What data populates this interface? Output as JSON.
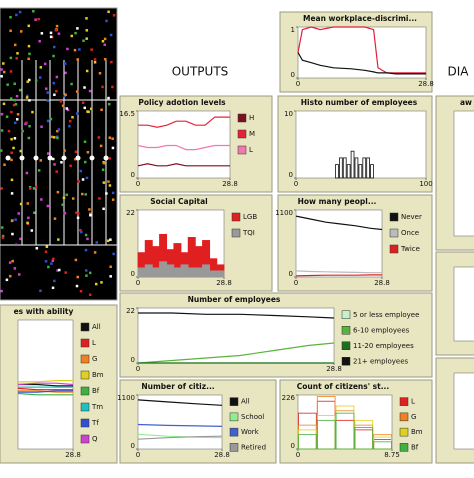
{
  "header": {
    "outputs": "OUTPUTS",
    "dia": "DIA"
  },
  "panels": [
    {
      "title": "Mean workplace-discrimi...",
      "type": "line",
      "xlim": [
        0,
        28.8
      ],
      "xticks": [
        0,
        28.8
      ],
      "ylim": [
        0,
        1
      ],
      "yticks": [
        0,
        1
      ],
      "x": [
        0,
        1,
        3,
        5,
        8,
        12,
        15,
        17,
        18,
        20,
        22,
        25,
        28.8
      ],
      "series": [
        {
          "color": "#e0203a",
          "values": [
            0.5,
            0.95,
            1,
            0.95,
            1,
            1,
            1,
            0.95,
            0.2,
            0.1,
            0.1,
            0.1,
            0.1
          ]
        },
        {
          "color": "#111111",
          "values": [
            0.5,
            0.35,
            0.3,
            0.25,
            0.2,
            0.18,
            0.15,
            0.12,
            0.1,
            0.1,
            0.08,
            0.08,
            0.08
          ]
        }
      ]
    },
    {
      "title": "Policy adotion levels",
      "type": "line",
      "xlim": [
        0,
        28.8
      ],
      "xticks": [
        0,
        28.8
      ],
      "ylim": [
        0,
        16.5
      ],
      "yticks": [
        0,
        16.5
      ],
      "x": [
        0,
        3,
        6,
        9,
        12,
        15,
        18,
        21,
        24,
        28.8
      ],
      "series": [
        {
          "name": "H",
          "color": "#7b1020",
          "values": [
            3,
            3.5,
            3,
            3,
            3.5,
            3,
            3,
            3,
            3,
            3
          ]
        },
        {
          "name": "M",
          "color": "#e8203a",
          "values": [
            13,
            13,
            12.5,
            13,
            14,
            14,
            13,
            13,
            15,
            15
          ]
        },
        {
          "name": "L",
          "color": "#f07ab0",
          "values": [
            8,
            7.5,
            7.5,
            8,
            8,
            7,
            7,
            7.5,
            8,
            8
          ]
        }
      ]
    },
    {
      "title": "Histo number of employees",
      "type": "histogram",
      "xlim": [
        0,
        100
      ],
      "xticks": [
        0,
        100
      ],
      "ylim": [
        0,
        10
      ],
      "yticks": [
        0,
        10
      ],
      "bins": [
        30,
        33,
        36,
        39,
        42,
        45,
        48,
        51,
        54,
        57,
        60
      ],
      "series": [
        {
          "color": "#111111",
          "values": [
            2,
            3,
            3,
            2,
            4,
            3,
            2,
            3,
            3,
            2
          ]
        }
      ]
    },
    {
      "title": "Social Capital",
      "type": "histogram",
      "xlim": [
        0,
        28.8
      ],
      "xticks": [
        0,
        28.8
      ],
      "ylim": [
        0,
        22
      ],
      "yticks": [
        0,
        22
      ],
      "bins": [
        0,
        2.4,
        4.8,
        7.2,
        9.6,
        12,
        14.4,
        16.8,
        19.2,
        21.6,
        24,
        26.4,
        28.8
      ],
      "series": [
        {
          "name": "LGB",
          "color": "#e02020",
          "values": [
            8,
            12,
            10,
            14,
            9,
            11,
            8,
            13,
            10,
            12,
            6,
            4
          ]
        },
        {
          "name": "TQI",
          "color": "#999999",
          "values": [
            3,
            4,
            3,
            5,
            4,
            3,
            4,
            3,
            3,
            4,
            2,
            2
          ]
        }
      ]
    },
    {
      "title": "How many peopl...",
      "type": "line",
      "xlim": [
        0,
        28.8
      ],
      "xticks": [
        0,
        28.8
      ],
      "ylim": [
        0,
        1100
      ],
      "yticks": [
        0,
        1100
      ],
      "x": [
        0,
        5,
        10,
        15,
        20,
        25,
        28.8
      ],
      "series": [
        {
          "name": "Never",
          "color": "#111111",
          "values": [
            1000,
            950,
            900,
            870,
            840,
            800,
            780
          ]
        },
        {
          "name": "Once",
          "color": "#bbbbbb",
          "values": [
            100,
            90,
            85,
            80,
            75,
            70,
            70
          ]
        },
        {
          "name": "Twice",
          "color": "#e02020",
          "values": [
            20,
            25,
            30,
            30,
            30,
            35,
            35
          ]
        }
      ]
    },
    {
      "title": "Number of employees",
      "type": "line",
      "xlim": [
        0,
        28.8
      ],
      "xticks": [
        0,
        28.8
      ],
      "ylim": [
        0,
        22
      ],
      "yticks": [
        0,
        22
      ],
      "x": [
        0,
        5,
        10,
        15,
        20,
        25,
        28.8
      ],
      "series": [
        {
          "name": "5 or less employee",
          "color": "#c8f0c8",
          "values": [
            0,
            0,
            0,
            0,
            0,
            0,
            0
          ]
        },
        {
          "name": "6-10 employees",
          "color": "#5ab43c",
          "values": [
            0,
            1,
            2,
            3,
            5,
            7,
            8
          ]
        },
        {
          "name": "11-20 employees",
          "color": "#1e6e1e",
          "values": [
            0,
            0,
            0,
            0,
            0,
            0,
            0
          ]
        },
        {
          "name": "21+ employees",
          "color": "#111111",
          "values": [
            20,
            20,
            19.5,
            19.5,
            19,
            18.5,
            18
          ]
        }
      ]
    },
    {
      "title": "es with ability",
      "type": "line",
      "xlim": [
        0,
        28.8
      ],
      "xticks": [
        28.8
      ],
      "ylim": [
        0,
        1
      ],
      "yticks": [],
      "x": [
        0,
        10,
        20,
        28.8
      ],
      "series": [
        {
          "name": "All",
          "color": "#111111",
          "values": [
            0.5,
            0.5,
            0.49,
            0.49
          ]
        },
        {
          "name": "L",
          "color": "#e02020",
          "values": [
            0.47,
            0.46,
            0.46,
            0.46
          ]
        },
        {
          "name": "G",
          "color": "#f08020",
          "values": [
            0.45,
            0.45,
            0.44,
            0.44
          ]
        },
        {
          "name": "Bm",
          "color": "#e0d020",
          "values": [
            0.52,
            0.52,
            0.53,
            0.53
          ]
        },
        {
          "name": "Bf",
          "color": "#40b040",
          "values": [
            0.43,
            0.42,
            0.42,
            0.42
          ]
        },
        {
          "name": "Tm",
          "color": "#20c0c0",
          "values": [
            0.48,
            0.48,
            0.48,
            0.48
          ]
        },
        {
          "name": "Tf",
          "color": "#3050d0",
          "values": [
            0.44,
            0.44,
            0.45,
            0.45
          ]
        },
        {
          "name": "Q",
          "color": "#d040d0",
          "values": [
            0.5,
            0.51,
            0.51,
            0.5
          ]
        }
      ]
    },
    {
      "title": "Number of citiz...",
      "type": "line",
      "xlim": [
        0,
        28.8
      ],
      "xticks": [
        0,
        28.8
      ],
      "ylim": [
        0,
        1100
      ],
      "yticks": [
        0,
        1100
      ],
      "x": [
        0,
        10,
        20,
        28.8
      ],
      "series": [
        {
          "name": "All",
          "color": "#111111",
          "values": [
            1000,
            960,
            920,
            890
          ]
        },
        {
          "name": "School",
          "color": "#90ee90",
          "values": [
            300,
            260,
            240,
            230
          ]
        },
        {
          "name": "Work",
          "color": "#4060d0",
          "values": [
            500,
            480,
            470,
            460
          ]
        },
        {
          "name": "Retired",
          "color": "#999999",
          "values": [
            200,
            230,
            250,
            260
          ]
        }
      ]
    },
    {
      "title": "Count of citizens' st...",
      "type": "histogram-outline",
      "xlim": [
        0,
        8.75
      ],
      "xticks": [
        0,
        8.75
      ],
      "ylim": [
        0,
        226
      ],
      "yticks": [
        0,
        226
      ],
      "bins": [
        0,
        1.75,
        3.5,
        5.25,
        7,
        8.75
      ],
      "series": [
        {
          "name": "L",
          "color": "#e02020",
          "values": [
            150,
            200,
            120,
            80,
            40
          ]
        },
        {
          "name": "G",
          "color": "#f08020",
          "values": [
            100,
            220,
            160,
            100,
            60
          ]
        },
        {
          "name": "Bm",
          "color": "#e0d020",
          "values": [
            80,
            140,
            180,
            120,
            50
          ]
        },
        {
          "name": "Bf",
          "color": "#40b040",
          "values": [
            60,
            120,
            150,
            90,
            30
          ]
        }
      ]
    }
  ],
  "side_panels": [
    {
      "title": "aw"
    }
  ]
}
